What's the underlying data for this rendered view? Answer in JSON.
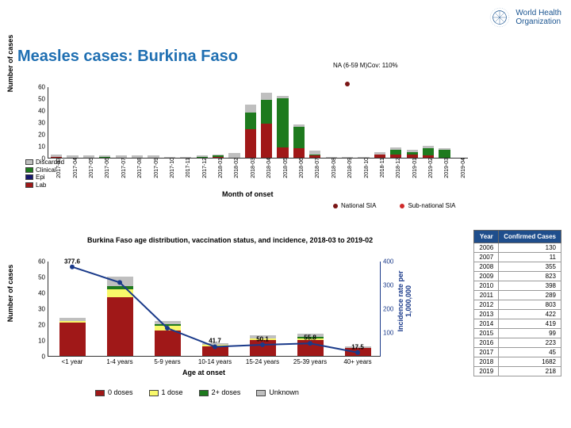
{
  "title": "Measles cases: Burkina Faso",
  "logo": {
    "line1": "World Health",
    "line2": "Organization"
  },
  "colors": {
    "discarded": "#bfbfbf",
    "clinical": "#1e7a1e",
    "epi": "#17176e",
    "lab": "#a01818",
    "doses0": "#a01818",
    "doses1": "#f8f86a",
    "doses2": "#1e7a1e",
    "unknown": "#bfbfbf",
    "incidence_line": "#1a3a8a",
    "sia_nat": "#7a1515",
    "sia_sub": "#d02a2a",
    "axis": "#333333",
    "table_head": "#1f4e8c"
  },
  "chart1": {
    "ylabel": "Number of cases",
    "xlabel": "Month of onset",
    "ymax": 60,
    "ytick_step": 10,
    "sia_note": "NA (6-59 M)Cov: 110%",
    "months": [
      "2017-03",
      "2017-04",
      "2017-05",
      "2017-06",
      "2017-07",
      "2017-08",
      "2017-09",
      "2017-10",
      "2017-11",
      "2017-12",
      "2018-01",
      "2018-02",
      "2018-03",
      "2018-04",
      "2018-05",
      "2018-06",
      "2018-07",
      "2018-08",
      "2018-09",
      "2018-10",
      "2018-11",
      "2018-12",
      "2019-01",
      "2019-02",
      "2019-03",
      "2019-04"
    ],
    "series": {
      "lab": [
        1,
        0,
        0,
        0,
        0,
        0,
        0,
        0,
        0,
        0,
        1,
        0,
        24,
        29,
        9,
        8,
        2,
        0,
        0,
        0,
        3,
        3,
        3,
        2,
        0,
        0
      ],
      "epi": [
        0,
        0,
        0,
        0,
        0,
        0,
        0,
        0,
        0,
        0,
        0,
        0,
        0,
        0,
        0,
        0,
        0,
        0,
        0,
        0,
        0,
        0,
        0,
        0,
        0,
        0
      ],
      "clinical": [
        0,
        0,
        0,
        1,
        0,
        0,
        0,
        0,
        0,
        1,
        1,
        0,
        14,
        20,
        41,
        18,
        1,
        0,
        0,
        0,
        0,
        4,
        2,
        6,
        7,
        0
      ],
      "discarded": [
        2,
        2,
        2,
        1,
        2,
        2,
        2,
        1,
        1,
        1,
        1,
        4,
        7,
        6,
        2,
        2,
        3,
        1,
        1,
        1,
        2,
        2,
        2,
        2,
        1,
        0
      ]
    },
    "legend": [
      {
        "label": "Discarded",
        "key": "discarded"
      },
      {
        "label": "Clinical",
        "key": "clinical"
      },
      {
        "label": "Epi",
        "key": "epi"
      },
      {
        "label": "Lab",
        "key": "lab"
      }
    ],
    "sia_legend": [
      {
        "label": "National SIA",
        "key": "sia_nat"
      },
      {
        "label": "Sub-national SIA",
        "key": "sia_sub"
      }
    ]
  },
  "chart2": {
    "subtitle": "Burkina Faso age distribution, vaccination status, and incidence, 2018-03 to 2019-02",
    "ylabel": "Number of cases",
    "ylabel_right": "Incidence rate per 1,000,000",
    "xlabel": "Age at onset",
    "ymax": 60,
    "ytick_step": 10,
    "ymax_r": 400,
    "ytick_step_r": 100,
    "categories": [
      "<1 year",
      "1-4 years",
      "5-9 years",
      "10-14 years",
      "15-24 years",
      "25-39 years",
      "40+ years"
    ],
    "stacks": {
      "doses0": [
        21,
        37,
        16,
        6,
        10,
        10,
        5
      ],
      "doses1": [
        1,
        5,
        3,
        1,
        1,
        1,
        0
      ],
      "doses2": [
        0,
        2,
        1,
        0,
        0,
        1,
        0
      ],
      "unknown": [
        2,
        6,
        2,
        1,
        2,
        2,
        1
      ]
    },
    "incidence": [
      377.6,
      312.0,
      120.0,
      41.7,
      50.1,
      55.8,
      17.5
    ],
    "point_labels": [
      "377.6",
      "",
      "",
      "41.7",
      "50.1",
      "55.8",
      "17.5"
    ],
    "legend": [
      {
        "label": "0 doses",
        "key": "doses0"
      },
      {
        "label": "1 dose",
        "key": "doses1"
      },
      {
        "label": "2+ doses",
        "key": "doses2"
      },
      {
        "label": "Unknown",
        "key": "unknown"
      }
    ]
  },
  "table": {
    "headers": [
      "Year",
      "Confirmed Cases"
    ],
    "rows": [
      [
        "2006",
        "130"
      ],
      [
        "2007",
        "11"
      ],
      [
        "2008",
        "355"
      ],
      [
        "2009",
        "823"
      ],
      [
        "2010",
        "398"
      ],
      [
        "2011",
        "289"
      ],
      [
        "2012",
        "803"
      ],
      [
        "2013",
        "422"
      ],
      [
        "2014",
        "419"
      ],
      [
        "2015",
        "99"
      ],
      [
        "2016",
        "223"
      ],
      [
        "2017",
        "45"
      ],
      [
        "2018",
        "1682"
      ],
      [
        "2019",
        "218"
      ]
    ]
  }
}
